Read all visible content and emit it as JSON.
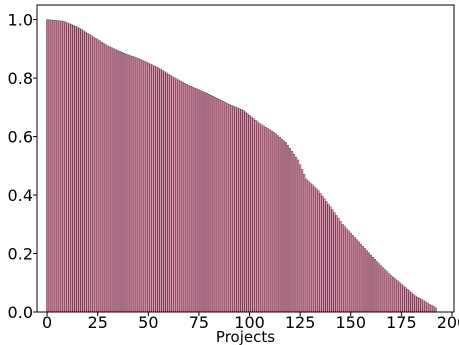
{
  "chart_data": {
    "type": "bar",
    "xlabel": "Projects",
    "ylabel": "",
    "xlim": [
      -5,
      201
    ],
    "ylim": [
      0,
      1.05
    ],
    "xticks": [
      0,
      25,
      50,
      75,
      100,
      125,
      150,
      175,
      200
    ],
    "yticks": [
      0.0,
      0.2,
      0.4,
      0.6,
      0.8,
      1.0
    ],
    "xtick_labels": [
      "0",
      "25",
      "50",
      "75",
      "100",
      "125",
      "150",
      "175",
      "200"
    ],
    "ytick_labels": [
      "0.0",
      "0.2",
      "0.4",
      "0.6",
      "0.8",
      "1.0"
    ],
    "bar_fill": "#f08ea0",
    "bar_edge": "#1a1a3c",
    "knots": [
      [
        0,
        1.0
      ],
      [
        8,
        0.995
      ],
      [
        15,
        0.975
      ],
      [
        22,
        0.945
      ],
      [
        30,
        0.91
      ],
      [
        38,
        0.885
      ],
      [
        46,
        0.865
      ],
      [
        55,
        0.835
      ],
      [
        62,
        0.805
      ],
      [
        70,
        0.775
      ],
      [
        80,
        0.745
      ],
      [
        90,
        0.71
      ],
      [
        97,
        0.69
      ],
      [
        105,
        0.645
      ],
      [
        112,
        0.615
      ],
      [
        118,
        0.58
      ],
      [
        124,
        0.52
      ],
      [
        128,
        0.455
      ],
      [
        134,
        0.415
      ],
      [
        140,
        0.36
      ],
      [
        146,
        0.3
      ],
      [
        152,
        0.255
      ],
      [
        158,
        0.21
      ],
      [
        164,
        0.165
      ],
      [
        170,
        0.125
      ],
      [
        176,
        0.09
      ],
      [
        182,
        0.055
      ],
      [
        187,
        0.035
      ],
      [
        192,
        0.015
      ]
    ]
  }
}
